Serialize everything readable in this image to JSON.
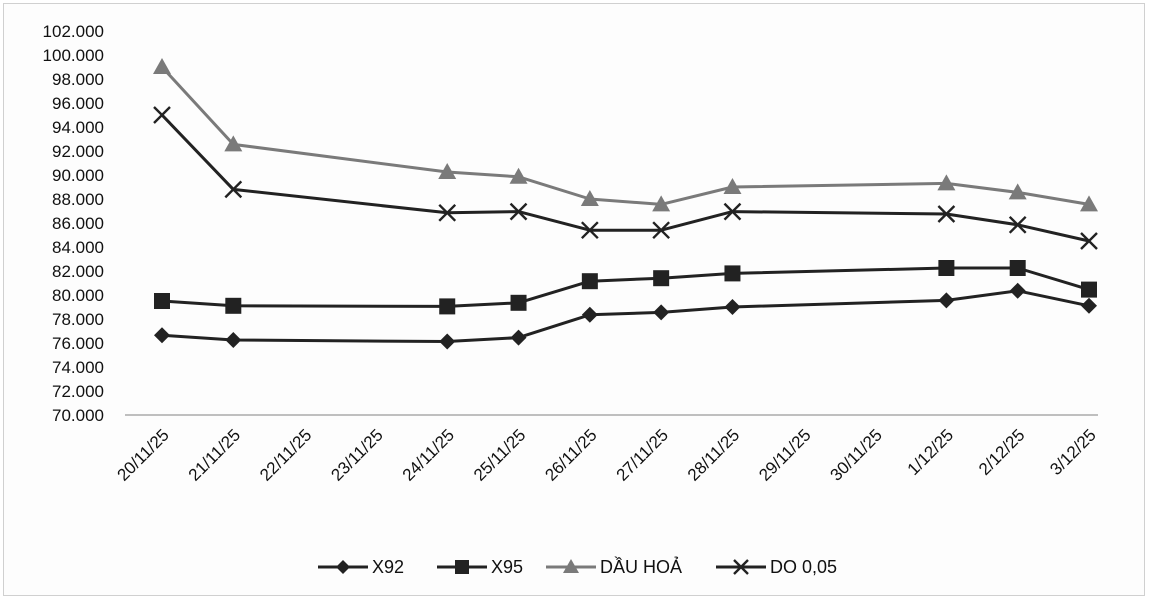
{
  "chart_data": {
    "type": "line",
    "title": "",
    "xlabel": "",
    "ylabel": "",
    "categories": [
      "20/11/25",
      "21/11/25",
      "22/11/25",
      "23/11/25",
      "24/11/25",
      "25/11/25",
      "26/11/25",
      "27/11/25",
      "28/11/25",
      "29/11/25",
      "30/11/25",
      "1/12/25",
      "2/12/25",
      "3/12/25"
    ],
    "y_ticks": [
      "70.000",
      "72.000",
      "74.000",
      "76.000",
      "78.000",
      "80.000",
      "82.000",
      "84.000",
      "86.000",
      "88.000",
      "90.000",
      "92.000",
      "94.000",
      "96.000",
      "98.000",
      "100.000",
      "102.000"
    ],
    "ylim": [
      70000,
      102000
    ],
    "grid": false,
    "legend_position": "bottom",
    "series": [
      {
        "name": "X92",
        "marker": "diamond",
        "color": "#222222",
        "values": [
          76650,
          76250,
          null,
          null,
          76120,
          76450,
          78350,
          78550,
          79000,
          null,
          null,
          79550,
          80350,
          79100
        ]
      },
      {
        "name": "X95",
        "marker": "square",
        "color": "#222222",
        "values": [
          79500,
          79100,
          null,
          null,
          79050,
          79350,
          81150,
          81400,
          81800,
          null,
          null,
          82250,
          82250,
          80450
        ]
      },
      {
        "name": "DẦU HOẢ",
        "marker": "triangle",
        "color": "#7a7a7a",
        "values": [
          99000,
          92550,
          null,
          null,
          90250,
          89850,
          88000,
          87550,
          89000,
          null,
          null,
          89300,
          88550,
          87550
        ]
      },
      {
        "name": "DO 0,05",
        "marker": "x",
        "color": "#222222",
        "values": [
          95000,
          88800,
          null,
          null,
          86850,
          86950,
          85400,
          85400,
          86950,
          null,
          null,
          86750,
          85850,
          84500
        ]
      }
    ]
  }
}
